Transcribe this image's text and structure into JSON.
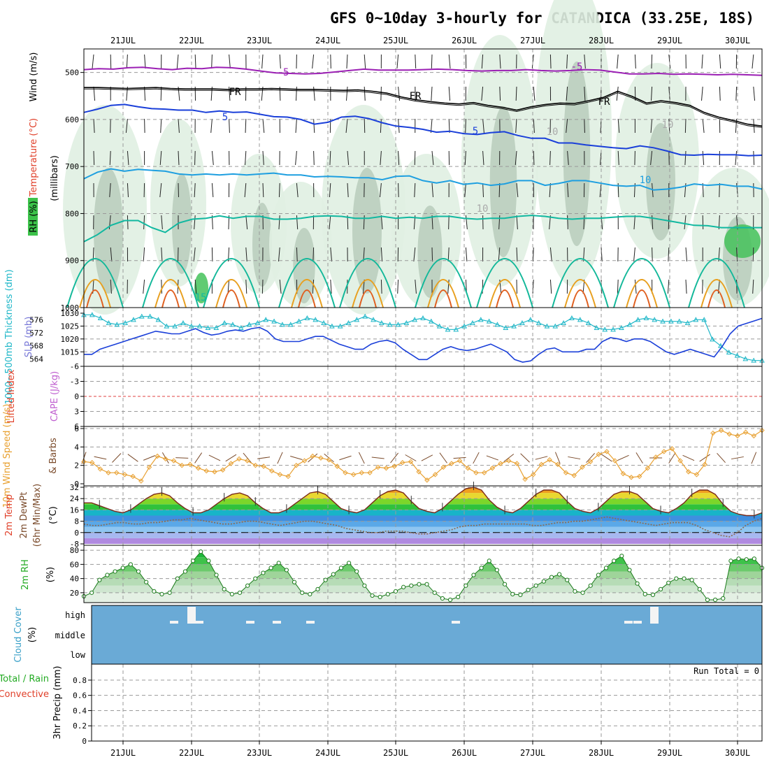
{
  "chart_data": {
    "type": "line",
    "title": "GFS 0~10day 3-hourly for CATANDICA (33.25E, 18S)",
    "dates": [
      "21JUL",
      "22JUL",
      "23JUL",
      "24JUL",
      "25JUL",
      "26JUL",
      "27JUL",
      "28JUL",
      "29JUL",
      "30JUL"
    ],
    "panels": {
      "upper_air": {
        "ylabel_left": [
          "RH (%)",
          "Temperature (°C)",
          "Wind (m/s)"
        ],
        "ylabel_right": "(millibars)",
        "yticks": [
          500,
          600,
          700,
          800,
          900,
          1000
        ],
        "ylim": [
          450,
          1000
        ],
        "isotherm_labels": [
          "-5",
          "-5",
          "FR",
          "FR",
          "FR",
          "5",
          "5",
          "10",
          "15",
          "10",
          "10",
          "10"
        ],
        "temperature_contours": [
          {
            "name": "-5",
            "color": "#9b1fb4",
            "y": [
              494,
              492,
              493,
              490,
              489,
              492,
              494,
              491,
              492,
              489,
              490,
              493,
              497,
              501,
              502,
              503,
              502,
              499,
              496,
              493,
              495,
              495,
              495,
              494,
              493,
              494,
              496,
              497,
              496,
              496,
              494,
              496,
              497,
              496,
              494,
              495,
              499,
              503,
              503,
              502,
              504,
              503,
              504,
              505,
              504,
              505,
              506
            ]
          },
          {
            "name": "FR",
            "color": "#000000",
            "y": [
              532,
              532,
              533,
              534,
              533,
              532,
              534,
              535,
              535,
              535,
              536,
              535,
              535,
              534,
              535,
              536,
              536,
              537,
              538,
              537,
              540,
              544,
              552,
              558,
              562,
              565,
              567,
              564,
              570,
              574,
              580,
              573,
              568,
              565,
              566,
              560,
              553,
              540,
              551,
              565,
              560,
              564,
              570,
              585,
              595,
              602,
              610,
              614
            ]
          },
          {
            "name": "5",
            "color": "#1a3fd9",
            "y": [
              585,
              578,
              570,
              568,
              573,
              577,
              578,
              580,
              580,
              585,
              582,
              585,
              584,
              589,
              594,
              595,
              600,
              610,
              606,
              595,
              593,
              598,
              607,
              614,
              617,
              621,
              627,
              625,
              630,
              632,
              628,
              626,
              634,
              640,
              640,
              650,
              650,
              654,
              657,
              660,
              662,
              656,
              660,
              667,
              675,
              676,
              674,
              675,
              675,
              677,
              676
            ]
          },
          {
            "name": "10",
            "color": "#1e9fe0",
            "y": [
              726,
              712,
              705,
              710,
              706,
              708,
              710,
              716,
              718,
              716,
              718,
              716,
              718,
              716,
              714,
              718,
              718,
              722,
              721,
              722,
              724,
              724,
              728,
              721,
              720,
              730,
              735,
              730,
              738,
              735,
              740,
              737,
              730,
              730,
              740,
              736,
              730,
              730,
              735,
              740,
              742,
              740,
              750,
              748,
              744,
              737,
              740,
              738,
              742,
              742,
              748
            ]
          },
          {
            "name": "15",
            "color": "#11b8a0",
            "y": [
              860,
              845,
              825,
              815,
              815,
              830,
              840,
              820,
              812,
              810,
              805,
              810,
              806,
              806,
              812,
              812,
              810,
              806,
              805,
              806,
              810,
              810,
              806,
              810,
              808,
              810,
              806,
              806,
              810,
              812,
              810,
              810,
              806,
              804,
              806,
              810,
              812,
              810,
              810,
              808,
              806,
              806,
              810,
              815,
              820,
              825,
              826,
              830,
              830,
              830,
              830
            ]
          }
        ]
      },
      "pressure_thickness": {
        "ylabel": [
          "1000~500mb Thickness (dm)",
          "SLP (mb)"
        ],
        "thickness_ticks": [
          564,
          568,
          572,
          576
        ],
        "slp_ticks": [
          1015,
          1020,
          1025,
          1030
        ],
        "series": [
          {
            "name": "1000~500mb Thickness (dm)",
            "color": "#1fb7c8",
            "values": [
              577.5,
              577.5,
              576.5,
              575,
              574.5,
              575,
              576,
              577,
              577,
              576,
              574,
              574,
              575,
              574,
              574,
              573.5,
              573.5,
              575,
              574.5,
              573.5,
              574.5,
              575,
              576,
              575.5,
              574.5,
              574.5,
              575.5,
              576.5,
              576,
              575,
              574,
              574,
              575,
              576,
              577,
              576,
              575,
              574.5,
              574.5,
              575,
              576,
              576.5,
              575.5,
              574,
              573,
              573,
              574,
              575,
              576,
              575.5,
              574.5,
              573.5,
              574,
              575,
              576,
              575,
              574,
              574,
              575,
              576.5,
              576,
              575,
              573.5,
              573,
              573,
              573.5,
              574.5,
              576,
              576.5,
              576,
              575.5,
              575.5,
              575.5,
              575,
              576,
              576,
              570,
              568,
              566,
              565,
              564,
              563.5,
              563.5
            ]
          },
          {
            "name": "SLP (mb)",
            "color": "#1a3fd9",
            "values": [
              1014,
              1014,
              1016,
              1017,
              1018,
              1019,
              1020,
              1021,
              1022,
              1023,
              1022.5,
              1022,
              1022,
              1023,
              1024,
              1022.5,
              1021.5,
              1022,
              1023,
              1023.5,
              1023,
              1024,
              1024.5,
              1023,
              1020,
              1019,
              1019,
              1019,
              1020,
              1021,
              1021,
              1019.5,
              1018,
              1017,
              1016,
              1016,
              1018,
              1019,
              1019.5,
              1018.5,
              1016,
              1014,
              1012,
              1012,
              1014,
              1016,
              1017,
              1016,
              1015.5,
              1016,
              1017,
              1018,
              1016.5,
              1015,
              1012,
              1011,
              1011.5,
              1014,
              1016,
              1016.5,
              1015,
              1015,
              1015,
              1016,
              1016,
              1019,
              1020.5,
              1020,
              1019,
              1020,
              1020,
              1019,
              1017,
              1015,
              1014,
              1015,
              1016,
              1015,
              1014,
              1013,
              1017,
              1022,
              1025,
              1026,
              1027,
              1028
            ]
          }
        ]
      },
      "instability": {
        "ylabel": [
          "Lifted Index",
          "CAPE (J/kg)"
        ],
        "yticks": [
          -6,
          -3,
          0,
          3,
          6
        ],
        "lifted_index": 0,
        "cape": 0
      },
      "wind10m": {
        "ylabel": [
          "10m Wind Speed (m/s)",
          "& Barbs"
        ],
        "yticks": [
          0,
          2,
          4,
          6
        ],
        "ylim": [
          0,
          6
        ],
        "series": [
          {
            "name": "10m Wind Speed",
            "color": "#e8a030",
            "values": [
              2.4,
              2.3,
              1.6,
              1.2,
              1.2,
              1.0,
              0.8,
              0.3,
              1.8,
              3.0,
              2.7,
              2.5,
              2.0,
              2.1,
              1.7,
              1.4,
              1.3,
              1.5,
              2.2,
              2.7,
              2.5,
              2.0,
              1.9,
              1.4,
              1.0,
              0.8,
              2.0,
              2.5,
              3.0,
              2.8,
              2.6,
              1.9,
              1.2,
              1.0,
              1.2,
              1.2,
              1.8,
              1.7,
              1.9,
              2.3,
              2.4,
              1.3,
              0.4,
              1.0,
              1.8,
              2.2,
              2.5,
              1.7,
              1.2,
              1.2,
              1.7,
              2.2,
              2.5,
              2.2,
              0.5,
              1.0,
              2.1,
              2.6,
              2.1,
              1.2,
              0.9,
              1.8,
              2.4,
              3.2,
              3.5,
              2.5,
              1.1,
              0.7,
              0.8,
              1.7,
              2.9,
              3.5,
              3.8,
              2.5,
              1.3,
              1.0,
              2.1,
              5.5,
              5.8,
              5.4,
              5.2,
              5.6,
              5.2,
              5.8
            ]
          }
        ]
      },
      "temperature2m": {
        "ylabel": [
          "2m Temp",
          "2m DewPt",
          "(6hr Min/Max)",
          "(°C)"
        ],
        "yticks": [
          -8,
          0,
          8,
          16,
          24,
          32
        ],
        "ylim": [
          -8,
          32
        ],
        "series": [
          {
            "name": "2m Temp",
            "color": "#7a2a1a",
            "values": [
              21,
              21,
              19,
              17,
              15,
              14,
              16,
              20,
              24,
              27,
              28,
              26,
              21,
              17,
              14,
              14,
              16,
              20,
              24,
              27,
              28,
              26,
              21,
              17,
              14,
              14,
              16,
              20,
              24,
              28,
              29,
              27,
              22,
              17,
              15,
              14,
              16,
              21,
              26,
              29,
              30,
              28,
              22,
              17,
              15,
              14,
              17,
              22,
              27,
              31,
              32,
              30,
              23,
              18,
              15,
              14,
              17,
              22,
              27,
              30,
              30,
              28,
              22,
              17,
              15,
              14,
              17,
              22,
              27,
              29,
              29,
              27,
              22,
              17,
              15,
              14,
              17,
              21,
              27,
              30,
              30,
              27,
              20,
              15,
              13,
              12,
              12,
              14
            ]
          },
          {
            "name": "2m DewPt",
            "color": "#8a6a50",
            "values": [
              6,
              5,
              5,
              6,
              7,
              7,
              6,
              6,
              7,
              7,
              8,
              9,
              9,
              10,
              9,
              8,
              7,
              6,
              6,
              7,
              8,
              8,
              7,
              6,
              5,
              6,
              7,
              8,
              8,
              7,
              6,
              5,
              3,
              2,
              1,
              0,
              0,
              1,
              1,
              1,
              0,
              -1,
              -1,
              0,
              1,
              2,
              4,
              5,
              5,
              6,
              6,
              6,
              6,
              6,
              6,
              5,
              5,
              6,
              7,
              7,
              8,
              8,
              9,
              10,
              11,
              10,
              9,
              8,
              7,
              6,
              5,
              6,
              7,
              7,
              7,
              5,
              2,
              0,
              -2,
              -3,
              0,
              5,
              8,
              10
            ]
          }
        ]
      },
      "rh2m": {
        "ylabel": [
          "2m RH",
          "(%)"
        ],
        "yticks": [
          20,
          40,
          60,
          80
        ],
        "ylim": [
          10,
          85
        ],
        "series": [
          {
            "name": "2m RH",
            "color": "#22aa22",
            "values": [
              15,
              20,
              38,
              45,
              50,
              55,
              60,
              50,
              35,
              22,
              18,
              20,
              40,
              50,
              65,
              78,
              65,
              45,
              25,
              18,
              20,
              30,
              40,
              48,
              55,
              62,
              52,
              35,
              20,
              18,
              25,
              38,
              46,
              55,
              62,
              50,
              30,
              16,
              14,
              18,
              22,
              28,
              30,
              32,
              32,
              20,
              12,
              10,
              14,
              30,
              45,
              55,
              65,
              52,
              32,
              18,
              17,
              24,
              30,
              36,
              42,
              46,
              38,
              22,
              20,
              30,
              45,
              55,
              65,
              72,
              52,
              33,
              18,
              17,
              25,
              34,
              40,
              40,
              38,
              25,
              10,
              10,
              12,
              65,
              68,
              67,
              68,
              55
            ]
          }
        ]
      },
      "cloud_cover": {
        "ylabel": [
          "Cloud Cover",
          "(%)"
        ],
        "levels": [
          "high",
          "middle",
          "low"
        ]
      },
      "precip": {
        "ylabel": [
          "Total / Rain",
          "Convective",
          "3hr Precip (mm)"
        ],
        "yticks": [
          0,
          0.2,
          0.4,
          0.6,
          0.8
        ],
        "ylim": [
          0,
          0.9
        ],
        "run_total": "Run Total = 0",
        "values": [
          0
        ]
      }
    },
    "colors": {
      "grid": "#999999",
      "cloud": "#6aaad6",
      "rh_shade": "#3cc24a",
      "cape_line": "#e04040"
    }
  }
}
